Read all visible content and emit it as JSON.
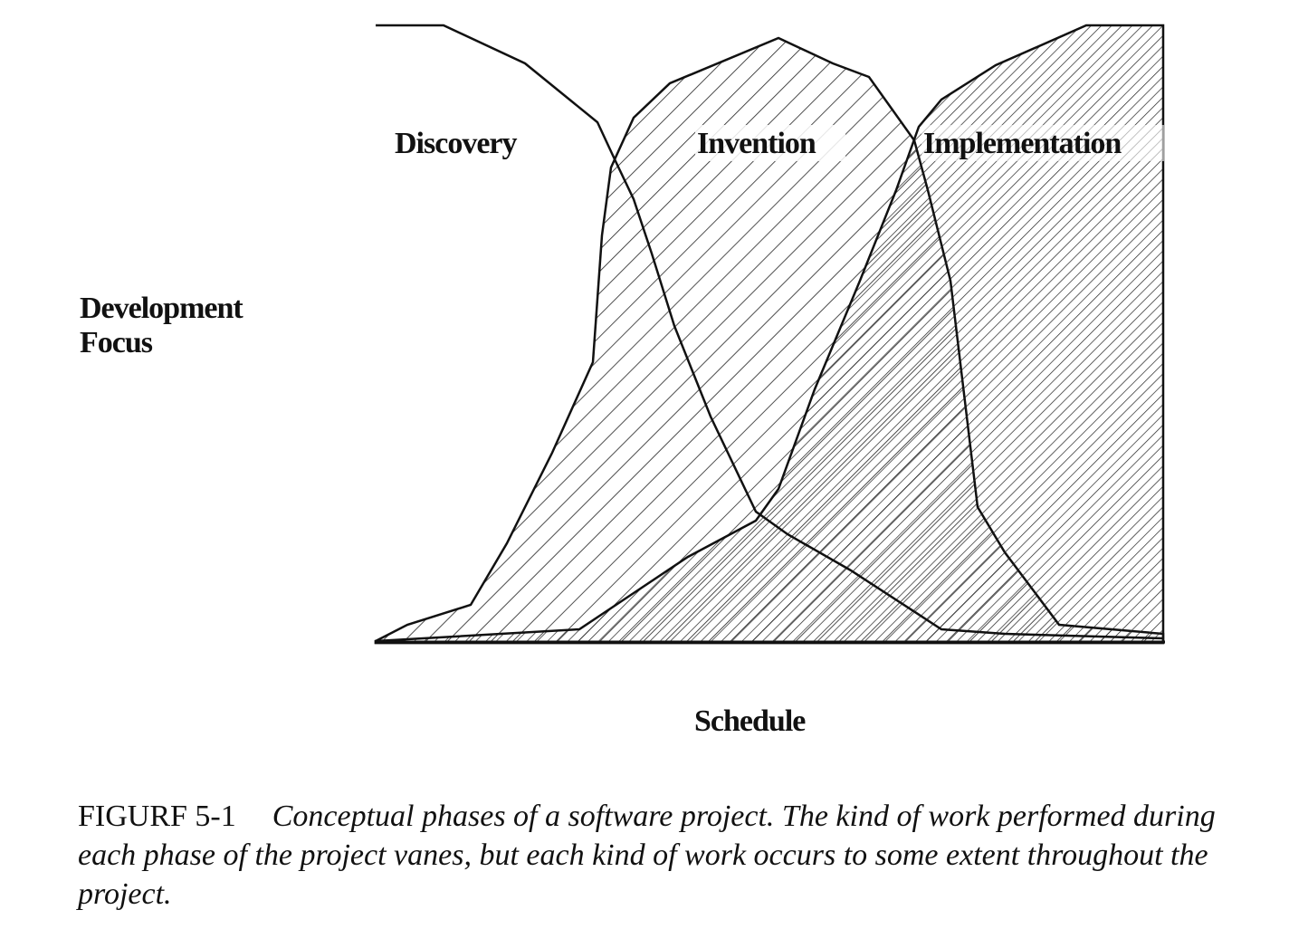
{
  "figure": {
    "phase_labels": [
      "Discovery",
      "Invention",
      "Implementation"
    ],
    "y_axis_label_line1": "Development",
    "y_axis_label_line2": "Focus",
    "x_axis_label": "Schedule",
    "caption_number": "FIGURF 5-1",
    "caption_text": "Conceptual phases of a software project. The kind of work performed during each phase of the project vanes, but each kind of work occurs to some extent throughout the project.",
    "colors": {
      "ink": "#111111",
      "background": "#ffffff"
    }
  }
}
